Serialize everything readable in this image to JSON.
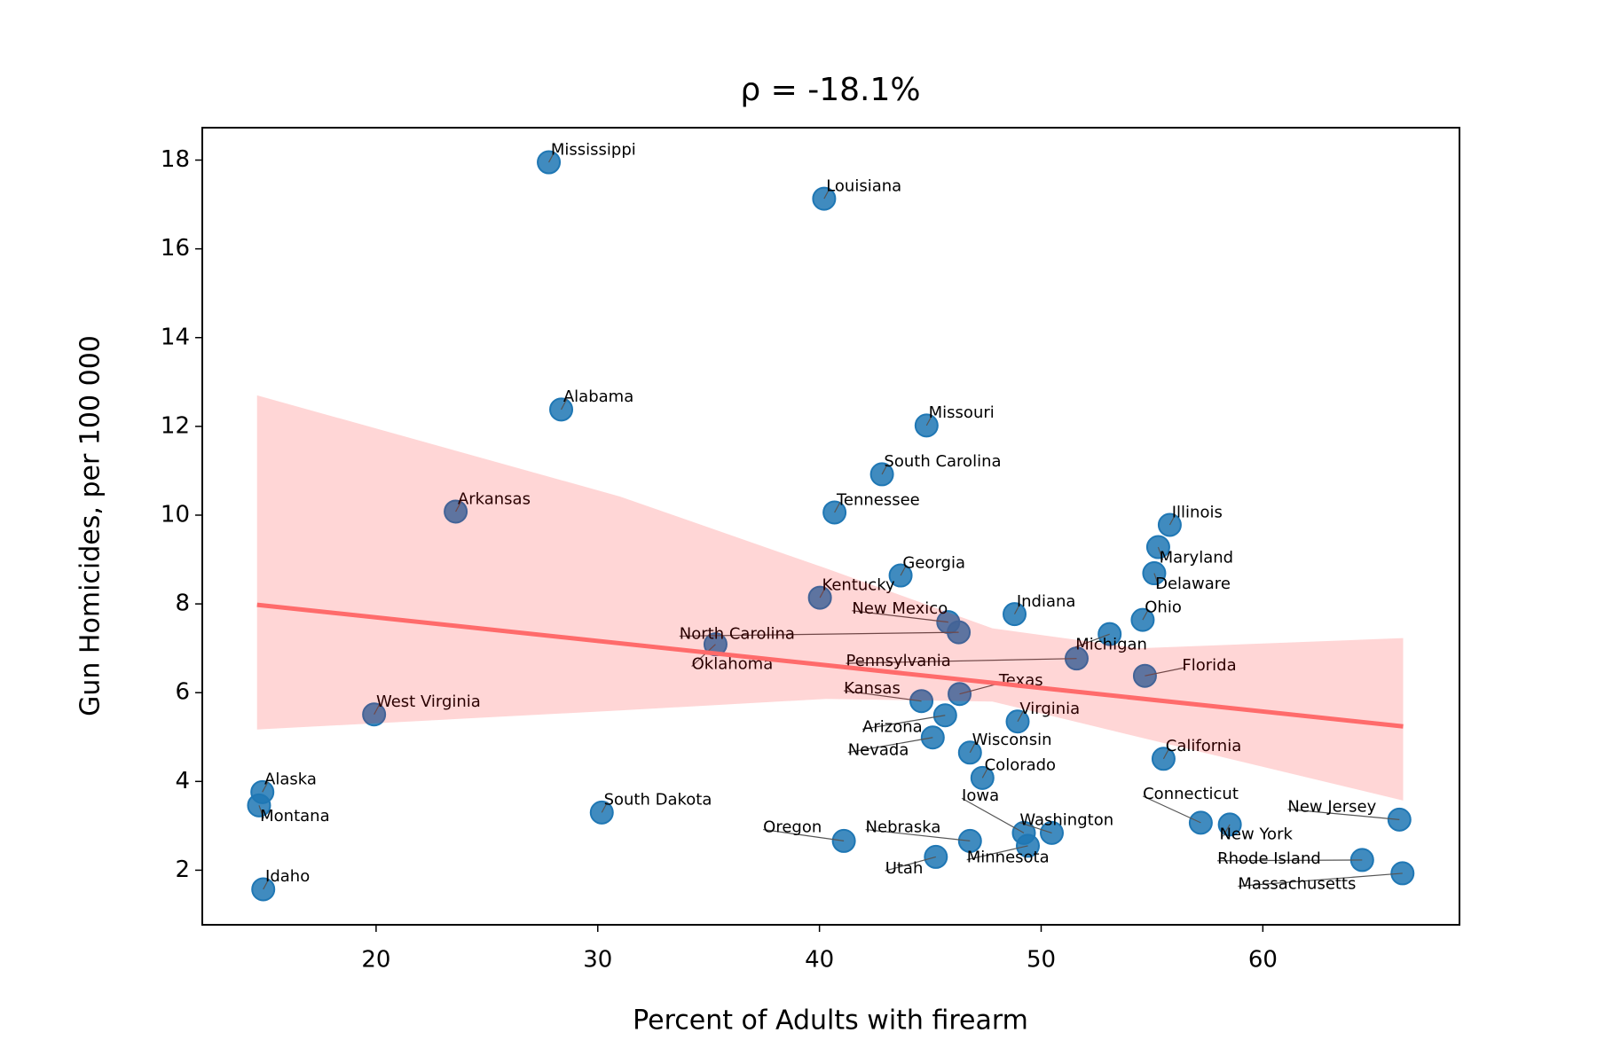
{
  "chart_data": {
    "type": "scatter",
    "title": "ρ = -18.1%",
    "xlabel": "Percent of Adults with firearm",
    "ylabel": "Gun Homicides, per 100 000",
    "xlim": [
      12.16,
      68.87
    ],
    "ylim": [
      0.77,
      18.73
    ],
    "xticks": [
      20,
      30,
      40,
      50,
      60
    ],
    "yticks": [
      2,
      4,
      6,
      8,
      10,
      12,
      14,
      16,
      18
    ],
    "color": "#1f77b4",
    "labels": [
      "Mississippi",
      "Louisiana",
      "Alabama",
      "Missouri",
      "South Carolina",
      "Tennessee",
      "Arkansas",
      "Illinois",
      "Maryland",
      "Delaware",
      "Georgia",
      "Kentucky",
      "Indiana",
      "Ohio",
      "New Mexico",
      "North Carolina",
      "Michigan",
      "Pennsylvania",
      "Oklahoma",
      "Florida",
      "Texas",
      "Kansas",
      "Arizona",
      "West Virginia",
      "Virginia",
      "Nevada",
      "Wisconsin",
      "California",
      "Colorado",
      "Alaska",
      "Montana",
      "South Dakota",
      "Connecticut",
      "New York",
      "New Jersey",
      "Iowa",
      "Washington",
      "Nebraska",
      "Oregon",
      "Minnesota",
      "Utah",
      "Rhode Island",
      "Massachusetts",
      "Idaho"
    ],
    "x": [
      27.79,
      40.21,
      28.35,
      44.83,
      42.82,
      40.68,
      23.59,
      55.8,
      55.28,
      55.1,
      43.66,
      40.02,
      48.8,
      54.58,
      45.81,
      46.28,
      53.09,
      51.6,
      35.31,
      54.68,
      46.32,
      44.6,
      45.67,
      19.91,
      48.94,
      45.11,
      46.79,
      55.52,
      47.35,
      14.87,
      14.72,
      30.18,
      57.2,
      58.51,
      66.16,
      49.22,
      50.48,
      46.79,
      41.1,
      49.4,
      45.25,
      64.48,
      66.3,
      14.91
    ],
    "values": [
      17.95,
      17.13,
      12.38,
      12.02,
      10.92,
      10.06,
      10.08,
      9.78,
      9.28,
      8.69,
      8.64,
      8.14,
      7.77,
      7.64,
      7.59,
      7.36,
      7.32,
      6.77,
      7.09,
      6.38,
      5.97,
      5.81,
      5.49,
      5.51,
      5.35,
      4.99,
      4.65,
      4.51,
      4.08,
      3.76,
      3.46,
      3.3,
      3.07,
      3.03,
      3.14,
      2.84,
      2.84,
      2.66,
      2.66,
      2.55,
      2.3,
      2.23,
      1.93,
      1.57
    ],
    "trend": {
      "x": [
        14.63,
        66.33
      ],
      "values": [
        7.98,
        5.24
      ],
      "color": "#ff6b6b"
    },
    "band": {
      "x": [
        14.63,
        31,
        40.3,
        47.8,
        54.4,
        66.33
      ],
      "upper": [
        12.7,
        10.42,
        8.8,
        7.45,
        7.0,
        7.23
      ],
      "lower": [
        5.17,
        5.6,
        5.86,
        5.8,
        5.0,
        3.57
      ],
      "color": "#ff0000"
    }
  }
}
